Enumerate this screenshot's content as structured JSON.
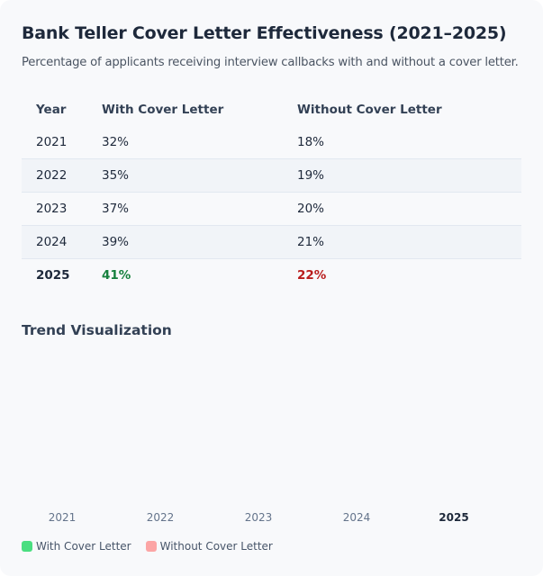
{
  "header": {
    "title": "Bank Teller Cover Letter Effectiveness (2021–2025)",
    "subtitle": "Percentage of applicants receiving interview callbacks with and without a cover letter."
  },
  "table": {
    "columns": [
      "Year",
      "With Cover Letter",
      "Without Cover Letter"
    ],
    "rows": [
      [
        "2021",
        "32%",
        "18%"
      ],
      [
        "2022",
        "35%",
        "19%"
      ],
      [
        "2023",
        "37%",
        "20%"
      ],
      [
        "2024",
        "39%",
        "21%"
      ],
      [
        "2025",
        "41%",
        "22%"
      ]
    ]
  },
  "trend": {
    "title": "Trend Visualization",
    "years": [
      "2021",
      "2022",
      "2023",
      "2024",
      "2025"
    ],
    "legend": [
      {
        "label": "With Cover Letter",
        "color": "#4ade80"
      },
      {
        "label": "Without Cover Letter",
        "color": "#fca5a5"
      }
    ]
  },
  "colors": {
    "highlight_with": "#15803d",
    "highlight_without": "#b91c1c"
  }
}
